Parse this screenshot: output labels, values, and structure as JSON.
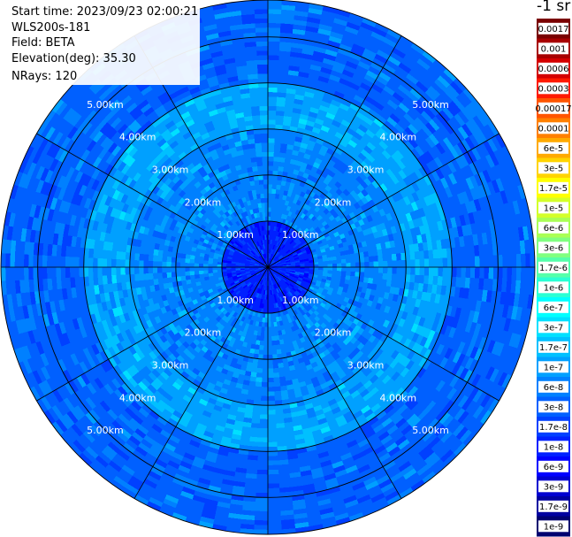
{
  "header": {
    "start_time": "Start time: 2023/09/23 02:00:21",
    "instrument": "WLS200s-181",
    "field": "Field: BETA",
    "elevation": "Elevation(deg): 35.30",
    "nrays": "NRays: 120"
  },
  "colorbar": {
    "unit": "-1 sr",
    "levels": [
      {
        "label": "0.0017",
        "color": "#7a0000"
      },
      {
        "label": "0.001",
        "color": "#a80000"
      },
      {
        "label": "0.0006",
        "color": "#d40000"
      },
      {
        "label": "0.0003",
        "color": "#ff1a00"
      },
      {
        "label": "0.00017",
        "color": "#ff5500"
      },
      {
        "label": "0.0001",
        "color": "#ff8000"
      },
      {
        "label": "6e-5",
        "color": "#ffaa00"
      },
      {
        "label": "3e-5",
        "color": "#ffd400"
      },
      {
        "label": "1.7e-5",
        "color": "#ffff00"
      },
      {
        "label": "1e-5",
        "color": "#d4ff2a"
      },
      {
        "label": "6e-6",
        "color": "#aaff55"
      },
      {
        "label": "3e-6",
        "color": "#80ff80"
      },
      {
        "label": "1.7e-6",
        "color": "#55ffaa"
      },
      {
        "label": "1e-6",
        "color": "#2affd4"
      },
      {
        "label": "6e-7",
        "color": "#00ffff"
      },
      {
        "label": "3e-7",
        "color": "#00e0ff"
      },
      {
        "label": "1.7e-7",
        "color": "#00c0ff"
      },
      {
        "label": "1e-7",
        "color": "#00a0ff"
      },
      {
        "label": "6e-8",
        "color": "#0080ff"
      },
      {
        "label": "3e-8",
        "color": "#0060ff"
      },
      {
        "label": "1.7e-8",
        "color": "#0040ff"
      },
      {
        "label": "1e-8",
        "color": "#0020ff"
      },
      {
        "label": "6e-9",
        "color": "#0000ff"
      },
      {
        "label": "3e-9",
        "color": "#0000d0"
      },
      {
        "label": "1.7e-9",
        "color": "#0000a0"
      },
      {
        "label": "1e-9",
        "color": "#000070"
      }
    ]
  },
  "chart_data": {
    "type": "heatmap",
    "projection": "polar-ppi",
    "field": "BETA",
    "rays": 120,
    "range_rings_km": [
      1.0,
      2.0,
      3.0,
      4.0,
      5.0
    ],
    "ring_labels": [
      "1.00km",
      "2.00km",
      "3.00km",
      "4.00km",
      "5.00km"
    ],
    "max_range_km": 5.8,
    "azimuth_lines_deg": [
      0,
      30,
      60,
      90,
      120,
      150,
      180,
      210,
      240,
      270,
      300,
      330
    ],
    "label_azimuths_deg": [
      45,
      135,
      225,
      315
    ],
    "dominant_band_by_range": [
      {
        "from_km": 0.0,
        "to_km": 1.0,
        "band": "1e-8"
      },
      {
        "from_km": 1.0,
        "to_km": 3.0,
        "band": "6e-8"
      },
      {
        "from_km": 3.0,
        "to_km": 4.0,
        "band": "1e-7"
      },
      {
        "from_km": 4.0,
        "to_km": 5.8,
        "band": "3e-8"
      }
    ]
  }
}
